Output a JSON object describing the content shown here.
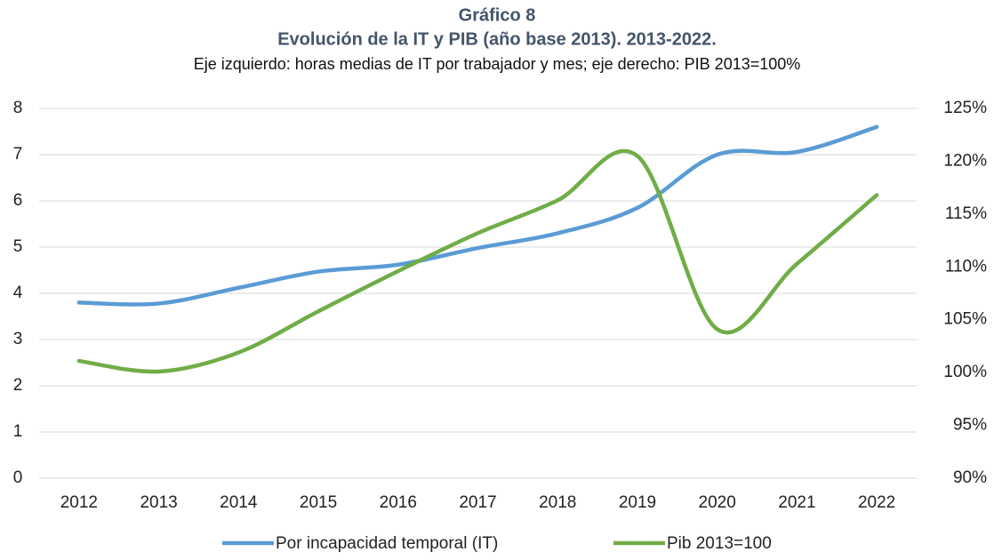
{
  "chart_data": {
    "type": "line",
    "title": "Gráfico 8",
    "subtitle": "Evolución de la IT y PIB (año base 2013). 2013-2022.",
    "note": "Eje izquierdo: horas medias de IT por trabajador y mes; eje derecho: PIB 2013=100%",
    "categories": [
      "2012",
      "2013",
      "2014",
      "2015",
      "2016",
      "2017",
      "2018",
      "2019",
      "2020",
      "2021",
      "2022"
    ],
    "series": [
      {
        "name": "Por incapacidad temporal (IT)",
        "color": "#5b9bd5",
        "values": [
          3.8,
          3.78,
          4.12,
          4.47,
          4.62,
          4.98,
          5.3,
          5.85,
          7.0,
          7.06,
          7.6
        ]
      },
      {
        "name": "Pib 2013=100",
        "color": "#70ad47",
        "axis": "y2",
        "values": [
          101.1,
          100.1,
          101.9,
          105.8,
          109.6,
          113.2,
          116.3,
          120.5,
          104.1,
          110.3,
          116.8
        ]
      }
    ],
    "ylim": [
      0,
      8
    ],
    "yticks": [
      0,
      1,
      2,
      3,
      4,
      5,
      6,
      7,
      8
    ],
    "y2lim": [
      90,
      125
    ],
    "y2ticks": [
      {
        "value": 90,
        "label": "90%"
      },
      {
        "value": 95,
        "label": "95%"
      },
      {
        "value": 100,
        "label": "100%"
      },
      {
        "value": 105,
        "label": "105%"
      },
      {
        "value": 110,
        "label": "110%"
      },
      {
        "value": 115,
        "label": "115%"
      },
      {
        "value": 120,
        "label": "120%"
      },
      {
        "value": 125,
        "label": "125%"
      }
    ],
    "grid": true,
    "legend": "bottom"
  }
}
